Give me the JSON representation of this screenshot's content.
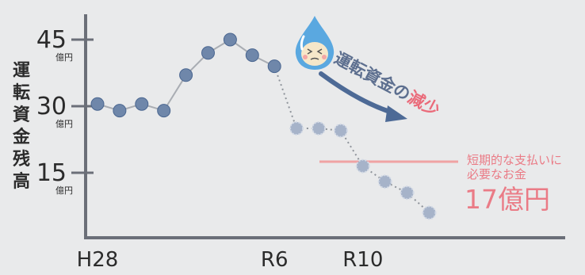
{
  "chart_data": {
    "type": "line",
    "ylabel": "運転資金残高",
    "y_ticks": [
      {
        "value": 45,
        "label": "45",
        "unit": "億円"
      },
      {
        "value": 30,
        "label": "30",
        "unit": "億円"
      },
      {
        "value": 15,
        "label": "15",
        "unit": "億円"
      }
    ],
    "x_tick_labels": [
      {
        "index": 0,
        "label": "H28"
      },
      {
        "index": 8,
        "label": "R6"
      },
      {
        "index": 12,
        "label": "R10"
      }
    ],
    "ylim": [
      0,
      55
    ],
    "series": [
      {
        "style": "solid",
        "color": "#6f87aa",
        "points": [
          [
            0,
            30.5
          ],
          [
            1,
            29
          ],
          [
            2,
            30.5
          ],
          [
            3,
            29
          ],
          [
            4,
            37
          ],
          [
            5,
            42
          ],
          [
            6,
            45
          ],
          [
            7,
            41.5
          ],
          [
            8,
            39
          ]
        ]
      },
      {
        "style": "dashed",
        "color": "#a6b3c9",
        "points": [
          [
            8,
            39
          ],
          [
            9,
            25
          ],
          [
            10,
            25
          ],
          [
            11,
            24.5
          ],
          [
            12,
            16.5
          ],
          [
            13,
            13
          ],
          [
            14,
            10.5
          ],
          [
            15,
            6
          ]
        ]
      }
    ],
    "threshold": {
      "value": 17,
      "color": "#f0a3a3"
    },
    "annotations": {
      "decrease_prefix": "運転資金の",
      "decrease_highlight": "減少",
      "threshold_line1": "短期的な支払いに",
      "threshold_line2": "必要なお金",
      "threshold_amount": "17億円"
    },
    "colors": {
      "axis": "#6b6f78",
      "solid_line": "#a9adb3",
      "dotted_line": "#8e939a",
      "arrow": "#4d6a96",
      "annotation_text": "#5d6f8f",
      "highlight": "#ea6b7a",
      "pink_text": "#ea7b86",
      "drop": "#5aa8e0"
    }
  }
}
